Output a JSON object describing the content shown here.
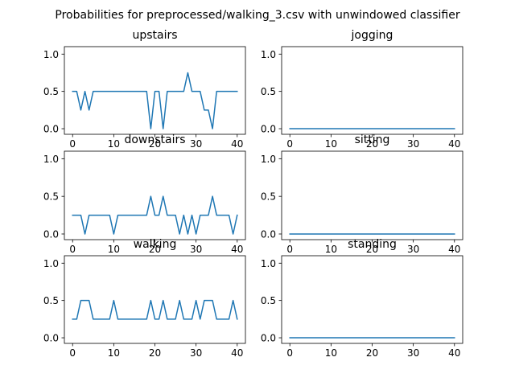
{
  "figure": {
    "suptitle": "Probabilities for preprocessed/walking_3.csv with unwindowed classifier"
  },
  "chart_data": [
    {
      "type": "line",
      "title": "upstairs",
      "xlim": [
        -2,
        42
      ],
      "ylim": [
        -0.075,
        1.1
      ],
      "xticks": [
        0,
        10,
        20,
        30,
        40
      ],
      "yticks": [
        0.0,
        0.5,
        1.0
      ],
      "xtick_labels": [
        "0",
        "10",
        "20",
        "30",
        "40"
      ],
      "ytick_labels": [
        "0.0",
        "0.5",
        "1.0"
      ],
      "color": "#1f77b4",
      "x": [
        0,
        1,
        2,
        3,
        4,
        5,
        6,
        7,
        8,
        9,
        10,
        11,
        12,
        13,
        14,
        15,
        16,
        17,
        18,
        19,
        20,
        21,
        22,
        23,
        24,
        25,
        26,
        27,
        28,
        29,
        30,
        31,
        32,
        33,
        34,
        35,
        36,
        37,
        38,
        39,
        40
      ],
      "y": [
        0.5,
        0.5,
        0.25,
        0.5,
        0.25,
        0.5,
        0.5,
        0.5,
        0.5,
        0.5,
        0.5,
        0.5,
        0.5,
        0.5,
        0.5,
        0.5,
        0.5,
        0.5,
        0.5,
        0.0,
        0.5,
        0.5,
        0.0,
        0.5,
        0.5,
        0.5,
        0.5,
        0.5,
        0.75,
        0.5,
        0.5,
        0.5,
        0.25,
        0.25,
        0.0,
        0.5,
        0.5,
        0.5,
        0.5,
        0.5,
        0.5
      ]
    },
    {
      "type": "line",
      "title": "jogging",
      "xlim": [
        -2,
        42
      ],
      "ylim": [
        -0.075,
        1.1
      ],
      "xticks": [
        0,
        10,
        20,
        30,
        40
      ],
      "yticks": [
        0.0,
        0.5,
        1.0
      ],
      "xtick_labels": [
        "0",
        "10",
        "20",
        "30",
        "40"
      ],
      "ytick_labels": [
        "0.0",
        "0.5",
        "1.0"
      ],
      "color": "#1f77b4",
      "x": [
        0,
        1,
        2,
        3,
        4,
        5,
        6,
        7,
        8,
        9,
        10,
        11,
        12,
        13,
        14,
        15,
        16,
        17,
        18,
        19,
        20,
        21,
        22,
        23,
        24,
        25,
        26,
        27,
        28,
        29,
        30,
        31,
        32,
        33,
        34,
        35,
        36,
        37,
        38,
        39,
        40
      ],
      "y": [
        0,
        0,
        0,
        0,
        0,
        0,
        0,
        0,
        0,
        0,
        0,
        0,
        0,
        0,
        0,
        0,
        0,
        0,
        0,
        0,
        0,
        0,
        0,
        0,
        0,
        0,
        0,
        0,
        0,
        0,
        0,
        0,
        0,
        0,
        0,
        0,
        0,
        0,
        0,
        0,
        0
      ]
    },
    {
      "type": "line",
      "title": "downstairs",
      "xlim": [
        -2,
        42
      ],
      "ylim": [
        -0.075,
        1.1
      ],
      "xticks": [
        0,
        10,
        20,
        30,
        40
      ],
      "yticks": [
        0.0,
        0.5,
        1.0
      ],
      "xtick_labels": [
        "0",
        "10",
        "20",
        "30",
        "40"
      ],
      "ytick_labels": [
        "0.0",
        "0.5",
        "1.0"
      ],
      "color": "#1f77b4",
      "x": [
        0,
        1,
        2,
        3,
        4,
        5,
        6,
        7,
        8,
        9,
        10,
        11,
        12,
        13,
        14,
        15,
        16,
        17,
        18,
        19,
        20,
        21,
        22,
        23,
        24,
        25,
        26,
        27,
        28,
        29,
        30,
        31,
        32,
        33,
        34,
        35,
        36,
        37,
        38,
        39,
        40
      ],
      "y": [
        0.25,
        0.25,
        0.25,
        0.0,
        0.25,
        0.25,
        0.25,
        0.25,
        0.25,
        0.25,
        0.0,
        0.25,
        0.25,
        0.25,
        0.25,
        0.25,
        0.25,
        0.25,
        0.25,
        0.5,
        0.25,
        0.25,
        0.5,
        0.25,
        0.25,
        0.25,
        0.0,
        0.25,
        0.0,
        0.25,
        0.0,
        0.25,
        0.25,
        0.25,
        0.5,
        0.25,
        0.25,
        0.25,
        0.25,
        0.0,
        0.25
      ]
    },
    {
      "type": "line",
      "title": "sitting",
      "xlim": [
        -2,
        42
      ],
      "ylim": [
        -0.075,
        1.1
      ],
      "xticks": [
        0,
        10,
        20,
        30,
        40
      ],
      "yticks": [
        0.0,
        0.5,
        1.0
      ],
      "xtick_labels": [
        "0",
        "10",
        "20",
        "30",
        "40"
      ],
      "ytick_labels": [
        "0.0",
        "0.5",
        "1.0"
      ],
      "color": "#1f77b4",
      "x": [
        0,
        1,
        2,
        3,
        4,
        5,
        6,
        7,
        8,
        9,
        10,
        11,
        12,
        13,
        14,
        15,
        16,
        17,
        18,
        19,
        20,
        21,
        22,
        23,
        24,
        25,
        26,
        27,
        28,
        29,
        30,
        31,
        32,
        33,
        34,
        35,
        36,
        37,
        38,
        39,
        40
      ],
      "y": [
        0,
        0,
        0,
        0,
        0,
        0,
        0,
        0,
        0,
        0,
        0,
        0,
        0,
        0,
        0,
        0,
        0,
        0,
        0,
        0,
        0,
        0,
        0,
        0,
        0,
        0,
        0,
        0,
        0,
        0,
        0,
        0,
        0,
        0,
        0,
        0,
        0,
        0,
        0,
        0,
        0
      ]
    },
    {
      "type": "line",
      "title": "walking",
      "xlim": [
        -2,
        42
      ],
      "ylim": [
        -0.075,
        1.1
      ],
      "xticks": [
        0,
        10,
        20,
        30,
        40
      ],
      "yticks": [
        0.0,
        0.5,
        1.0
      ],
      "xtick_labels": [
        "0",
        "10",
        "20",
        "30",
        "40"
      ],
      "ytick_labels": [
        "0.0",
        "0.5",
        "1.0"
      ],
      "color": "#1f77b4",
      "x": [
        0,
        1,
        2,
        3,
        4,
        5,
        6,
        7,
        8,
        9,
        10,
        11,
        12,
        13,
        14,
        15,
        16,
        17,
        18,
        19,
        20,
        21,
        22,
        23,
        24,
        25,
        26,
        27,
        28,
        29,
        30,
        31,
        32,
        33,
        34,
        35,
        36,
        37,
        38,
        39,
        40
      ],
      "y": [
        0.25,
        0.25,
        0.5,
        0.5,
        0.5,
        0.25,
        0.25,
        0.25,
        0.25,
        0.25,
        0.5,
        0.25,
        0.25,
        0.25,
        0.25,
        0.25,
        0.25,
        0.25,
        0.25,
        0.5,
        0.25,
        0.25,
        0.5,
        0.25,
        0.25,
        0.25,
        0.5,
        0.25,
        0.25,
        0.25,
        0.5,
        0.25,
        0.5,
        0.5,
        0.5,
        0.25,
        0.25,
        0.25,
        0.25,
        0.5,
        0.25
      ]
    },
    {
      "type": "line",
      "title": "standing",
      "xlim": [
        -2,
        42
      ],
      "ylim": [
        -0.075,
        1.1
      ],
      "xticks": [
        0,
        10,
        20,
        30,
        40
      ],
      "yticks": [
        0.0,
        0.5,
        1.0
      ],
      "xtick_labels": [
        "0",
        "10",
        "20",
        "30",
        "40"
      ],
      "ytick_labels": [
        "0.0",
        "0.5",
        "1.0"
      ],
      "color": "#1f77b4",
      "x": [
        0,
        1,
        2,
        3,
        4,
        5,
        6,
        7,
        8,
        9,
        10,
        11,
        12,
        13,
        14,
        15,
        16,
        17,
        18,
        19,
        20,
        21,
        22,
        23,
        24,
        25,
        26,
        27,
        28,
        29,
        30,
        31,
        32,
        33,
        34,
        35,
        36,
        37,
        38,
        39,
        40
      ],
      "y": [
        0,
        0,
        0,
        0,
        0,
        0,
        0,
        0,
        0,
        0,
        0,
        0,
        0,
        0,
        0,
        0,
        0,
        0,
        0,
        0,
        0,
        0,
        0,
        0,
        0,
        0,
        0,
        0,
        0,
        0,
        0,
        0,
        0,
        0,
        0,
        0,
        0,
        0,
        0,
        0,
        0
      ]
    }
  ]
}
